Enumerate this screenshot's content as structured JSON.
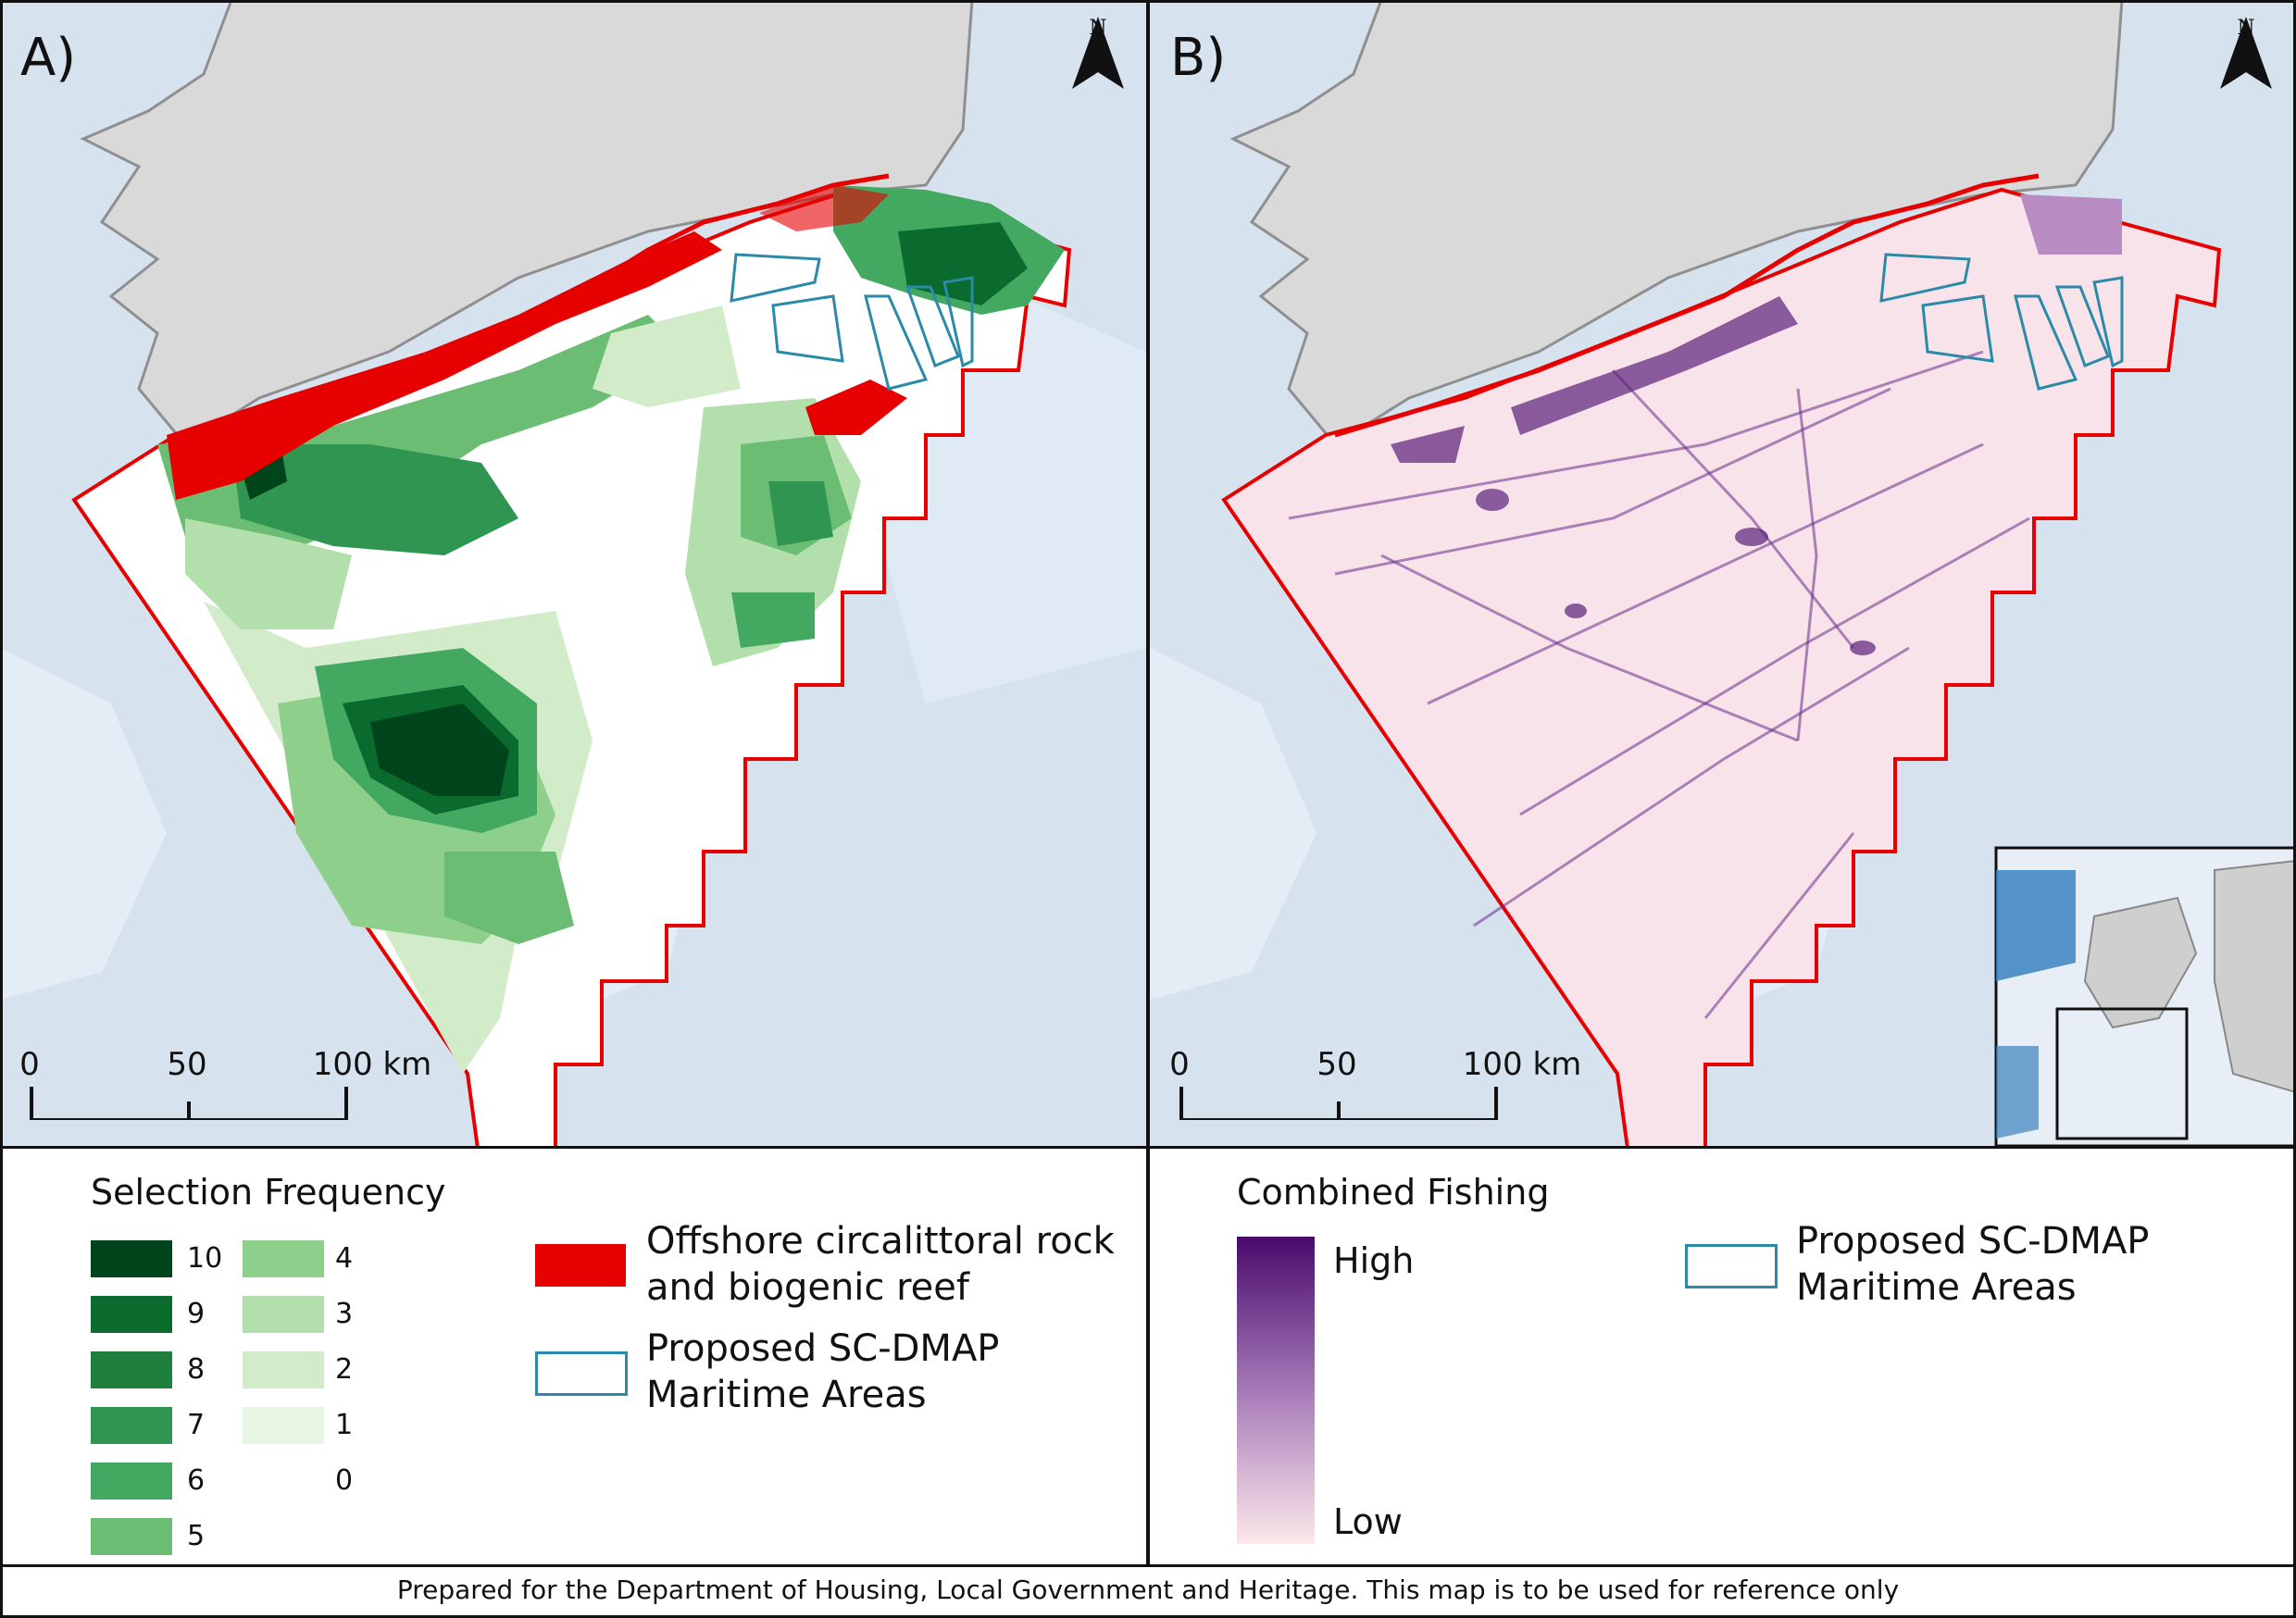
{
  "panels": {
    "a": {
      "label": "A)"
    },
    "b": {
      "label": "B)"
    }
  },
  "north_arrow": {
    "letter": "N"
  },
  "scale_bar": {
    "labels": [
      "0",
      "50",
      "100 km"
    ]
  },
  "legend_a": {
    "title": "Selection Frequency",
    "classes": [
      {
        "value": "10",
        "color": "#00441b"
      },
      {
        "value": "9",
        "color": "#0b6b2e"
      },
      {
        "value": "8",
        "color": "#1f7f3c"
      },
      {
        "value": "7",
        "color": "#2f9550"
      },
      {
        "value": "6",
        "color": "#43a860"
      },
      {
        "value": "5",
        "color": "#6bbd74"
      },
      {
        "value": "4",
        "color": "#8ecf8c"
      },
      {
        "value": "3",
        "color": "#b2dfab"
      },
      {
        "value": "2",
        "color": "#d2ecca"
      },
      {
        "value": "1",
        "color": "#e8f5e3"
      },
      {
        "value": "0",
        "color": "#ffffff"
      }
    ],
    "reef_label_line1": "Offshore circalittoral rock",
    "reef_label_line2": "and biogenic reef",
    "reef_color": "#e60000",
    "dmap_label_line1": "Proposed SC-DMAP",
    "dmap_label_line2": "Maritime Areas",
    "dmap_color": "#2a8aa8"
  },
  "legend_b": {
    "title": "Combined Fishing",
    "high": "High",
    "low": "Low",
    "ramp_top": "#4a0a6b",
    "ramp_bottom": "#fde8ea",
    "dmap_label_line1": "Proposed SC-DMAP",
    "dmap_label_line2": "Maritime Areas"
  },
  "footer": "Prepared for the Department of Housing, Local Government and Heritage. This map is to be used for reference only"
}
